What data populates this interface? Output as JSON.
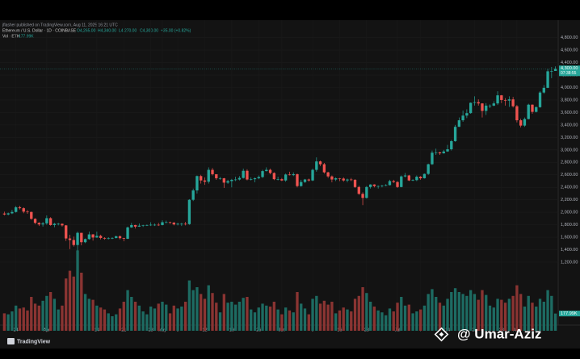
{
  "header": {
    "author_line": "jflasher published on TradingView.com, Aug 11, 2025 16:21 UTC",
    "footer_logo": "TradingView",
    "watermark": "@ Umar-Aziz"
  },
  "chart_data": {
    "type": "candlestick",
    "title": "Ethereum / U.S. Dollar · 1D · COINBASE",
    "ohlc_labels": [
      "O4,265.00",
      "H4,340.00",
      "L4,270.00",
      "C4,300.00"
    ],
    "change_label": "+35.00 (+0.82%)",
    "volume_legend": "Vol · ETH",
    "volume_last_label": "177.99K",
    "close_last_label": "4,300.00",
    "countdown": "07:38:55",
    "up_color": "#26a69a",
    "down_color": "#ef5350",
    "volume_up_color": "#1d6b62",
    "volume_down_color": "#8a3432",
    "grid": true,
    "xlim": [
      -0.5,
      143.5
    ],
    "ylim": [
      100,
      5080
    ],
    "y2lim": [
      0,
      1000
    ],
    "xticks": [
      {
        "value": 3,
        "label": "24"
      },
      {
        "value": 11,
        "label": "Apr"
      },
      {
        "value": 17,
        "label": "7"
      },
      {
        "value": 24,
        "label": "14"
      },
      {
        "value": 31,
        "label": "21"
      },
      {
        "value": 38,
        "label": "28"
      },
      {
        "value": 41,
        "label": "May"
      },
      {
        "value": 45,
        "label": "5"
      },
      {
        "value": 52,
        "label": "12"
      },
      {
        "value": 59,
        "label": "19"
      },
      {
        "value": 66,
        "label": "26"
      },
      {
        "value": 72,
        "label": "Jun"
      },
      {
        "value": 80,
        "label": "9"
      },
      {
        "value": 87,
        "label": "16"
      },
      {
        "value": 94,
        "label": "23"
      },
      {
        "value": 102,
        "label": "Jul"
      },
      {
        "value": 108,
        "label": "7"
      },
      {
        "value": 115,
        "label": "14"
      },
      {
        "value": 122,
        "label": "21"
      },
      {
        "value": 129,
        "label": "28"
      },
      {
        "value": 133,
        "label": "Aug"
      }
    ],
    "yticks": [
      {
        "value": 1200,
        "label": "1,200.00"
      },
      {
        "value": 1400,
        "label": "1,400.00"
      },
      {
        "value": 1600,
        "label": "1,600.00"
      },
      {
        "value": 1800,
        "label": "1,800.00"
      },
      {
        "value": 2000,
        "label": "2,000.00"
      },
      {
        "value": 2200,
        "label": "2,200.00"
      },
      {
        "value": 2400,
        "label": "2,400.00"
      },
      {
        "value": 2600,
        "label": "2,600.00"
      },
      {
        "value": 2800,
        "label": "2,800.00"
      },
      {
        "value": 3000,
        "label": "3,000.00"
      },
      {
        "value": 3200,
        "label": "3,200.00"
      },
      {
        "value": 3400,
        "label": "3,400.00"
      },
      {
        "value": 3600,
        "label": "3,600.00"
      },
      {
        "value": 3800,
        "label": "3,800.00"
      },
      {
        "value": 4000,
        "label": "4,000.00"
      },
      {
        "value": 4200,
        "label": "4,200.00"
      },
      {
        "value": 4400,
        "label": "4,400.00"
      },
      {
        "value": 4600,
        "label": "4,600.00"
      },
      {
        "value": 4800,
        "label": "4,800.00"
      }
    ],
    "open": [
      1980,
      1965,
      1983,
      2005,
      2080,
      2065,
      2010,
      2005,
      1895,
      1830,
      1805,
      1822,
      1905,
      1795,
      1815,
      1815,
      1790,
      1580,
      1555,
      1475,
      1670,
      1520,
      1570,
      1645,
      1595,
      1622,
      1588,
      1578,
      1583,
      1587,
      1615,
      1585,
      1575,
      1757,
      1795,
      1770,
      1785,
      1790,
      1795,
      1800,
      1800,
      1795,
      1840,
      1840,
      1835,
      1805,
      1815,
      1815,
      1810,
      2200,
      2350,
      2580,
      2510,
      2490,
      2680,
      2610,
      2545,
      2545,
      2475,
      2500,
      2520,
      2525,
      2550,
      2665,
      2525,
      2530,
      2545,
      2565,
      2660,
      2680,
      2630,
      2530,
      2530,
      2510,
      2605,
      2595,
      2610,
      2420,
      2485,
      2525,
      2510,
      2680,
      2815,
      2770,
      2640,
      2575,
      2525,
      2545,
      2540,
      2510,
      2525,
      2520,
      2405,
      2295,
      2230,
      2405,
      2445,
      2420,
      2420,
      2425,
      2435,
      2500,
      2485,
      2405,
      2575,
      2590,
      2510,
      2515,
      2570,
      2545,
      2615,
      2770,
      2955,
      2960,
      2945,
      2975,
      3010,
      3140,
      3370,
      3475,
      3550,
      3590,
      3755,
      3765,
      3745,
      3625,
      3710,
      3710,
      3745,
      3875,
      3800,
      3790,
      3810,
      3700,
      3475,
      3390,
      3495,
      3725,
      3610,
      3685,
      3920,
      3995,
      4260,
      4265
    ],
    "high": [
      2010,
      1995,
      2040,
      2100,
      2105,
      2080,
      2035,
      2010,
      1905,
      1840,
      1845,
      1950,
      1920,
      1830,
      1830,
      1820,
      1795,
      1640,
      1610,
      1690,
      1670,
      1580,
      1690,
      1650,
      1690,
      1640,
      1600,
      1600,
      1600,
      1625,
      1630,
      1590,
      1770,
      1830,
      1800,
      1820,
      1800,
      1805,
      1840,
      1820,
      1830,
      1870,
      1865,
      1850,
      1840,
      1830,
      1830,
      1845,
      2210,
      2380,
      2590,
      2600,
      2560,
      2720,
      2710,
      2610,
      2565,
      2550,
      2520,
      2535,
      2570,
      2580,
      2700,
      2690,
      2560,
      2560,
      2590,
      2680,
      2720,
      2700,
      2640,
      2570,
      2550,
      2620,
      2650,
      2640,
      2620,
      2520,
      2535,
      2540,
      2700,
      2880,
      2830,
      2790,
      2650,
      2590,
      2560,
      2550,
      2560,
      2540,
      2550,
      2530,
      2425,
      2320,
      2420,
      2450,
      2450,
      2430,
      2440,
      2450,
      2520,
      2520,
      2500,
      2590,
      2630,
      2600,
      2530,
      2590,
      2580,
      2620,
      2780,
      2990,
      3020,
      2970,
      3000,
      3080,
      3160,
      3400,
      3520,
      3630,
      3650,
      3760,
      3860,
      3810,
      3750,
      3750,
      3730,
      3780,
      3940,
      3880,
      3830,
      3860,
      3850,
      3720,
      3500,
      3520,
      3740,
      3730,
      3700,
      3940,
      4040,
      4300,
      4330,
      4340
    ],
    "low": [
      1950,
      1950,
      1970,
      1995,
      2045,
      1985,
      1975,
      1880,
      1810,
      1780,
      1770,
      1800,
      1785,
      1760,
      1790,
      1770,
      1540,
      1410,
      1450,
      1385,
      1470,
      1505,
      1560,
      1545,
      1590,
      1565,
      1560,
      1565,
      1570,
      1580,
      1565,
      1535,
      1570,
      1750,
      1740,
      1765,
      1765,
      1780,
      1780,
      1780,
      1780,
      1790,
      1825,
      1815,
      1790,
      1790,
      1780,
      1790,
      1800,
      2180,
      2300,
      2460,
      2440,
      2460,
      2590,
      2520,
      2520,
      2390,
      2455,
      2400,
      2500,
      2510,
      2540,
      2510,
      2510,
      2480,
      2530,
      2550,
      2655,
      2610,
      2515,
      2510,
      2500,
      2490,
      2590,
      2580,
      2400,
      2410,
      2470,
      2490,
      2500,
      2650,
      2740,
      2620,
      2550,
      2480,
      2500,
      2500,
      2490,
      2480,
      2500,
      2390,
      2280,
      2115,
      2220,
      2380,
      2400,
      2380,
      2400,
      2420,
      2430,
      2470,
      2390,
      2400,
      2560,
      2500,
      2500,
      2500,
      2520,
      2540,
      2600,
      2760,
      2920,
      2920,
      2940,
      2970,
      2990,
      3130,
      3370,
      3450,
      3510,
      3580,
      3710,
      3710,
      3520,
      3560,
      3670,
      3700,
      3720,
      3750,
      3710,
      3690,
      3680,
      3440,
      3360,
      3370,
      3490,
      3580,
      3600,
      3675,
      3900,
      3990,
      4150,
      4270
    ],
    "close": [
      1965,
      1983,
      2005,
      2080,
      2065,
      2010,
      2005,
      1895,
      1830,
      1805,
      1822,
      1905,
      1795,
      1815,
      1815,
      1790,
      1580,
      1555,
      1475,
      1670,
      1520,
      1570,
      1645,
      1595,
      1622,
      1588,
      1578,
      1583,
      1587,
      1615,
      1585,
      1575,
      1757,
      1795,
      1770,
      1785,
      1790,
      1795,
      1800,
      1800,
      1795,
      1840,
      1840,
      1835,
      1805,
      1815,
      1815,
      1810,
      2200,
      2350,
      2580,
      2510,
      2490,
      2680,
      2610,
      2545,
      2545,
      2475,
      2500,
      2520,
      2525,
      2550,
      2665,
      2525,
      2530,
      2545,
      2565,
      2660,
      2680,
      2630,
      2530,
      2530,
      2510,
      2605,
      2595,
      2610,
      2420,
      2485,
      2525,
      2510,
      2680,
      2815,
      2770,
      2640,
      2575,
      2525,
      2545,
      2540,
      2510,
      2525,
      2520,
      2405,
      2295,
      2230,
      2405,
      2445,
      2420,
      2420,
      2425,
      2435,
      2500,
      2485,
      2405,
      2575,
      2590,
      2510,
      2515,
      2570,
      2545,
      2615,
      2770,
      2955,
      2960,
      2945,
      2975,
      3010,
      3140,
      3370,
      3475,
      3550,
      3590,
      3755,
      3765,
      3745,
      3625,
      3710,
      3710,
      3745,
      3875,
      3800,
      3790,
      3810,
      3700,
      3475,
      3390,
      3495,
      3725,
      3610,
      3685,
      3920,
      3995,
      4260,
      4265,
      4300
    ],
    "volume": [
      180,
      170,
      200,
      260,
      230,
      240,
      210,
      350,
      280,
      260,
      310,
      360,
      400,
      330,
      220,
      260,
      540,
      620,
      560,
      830,
      600,
      380,
      330,
      320,
      260,
      240,
      220,
      180,
      150,
      170,
      230,
      300,
      420,
      350,
      300,
      260,
      200,
      170,
      250,
      230,
      280,
      300,
      270,
      180,
      260,
      230,
      250,
      300,
      520,
      420,
      450,
      380,
      330,
      470,
      390,
      290,
      190,
      380,
      290,
      300,
      270,
      300,
      340,
      350,
      220,
      190,
      240,
      280,
      260,
      250,
      300,
      220,
      170,
      240,
      210,
      190,
      400,
      280,
      230,
      170,
      330,
      360,
      280,
      310,
      270,
      300,
      180,
      210,
      240,
      220,
      200,
      330,
      360,
      450,
      390,
      300,
      250,
      210,
      190,
      160,
      230,
      200,
      290,
      350,
      260,
      270,
      180,
      200,
      220,
      260,
      380,
      430,
      350,
      290,
      260,
      330,
      400,
      440,
      400,
      380,
      360,
      420,
      380,
      320,
      420,
      370,
      260,
      240,
      330,
      320,
      290,
      330,
      360,
      470,
      380,
      250,
      360,
      290,
      250,
      330,
      300,
      420,
      360,
      177.99
    ]
  }
}
